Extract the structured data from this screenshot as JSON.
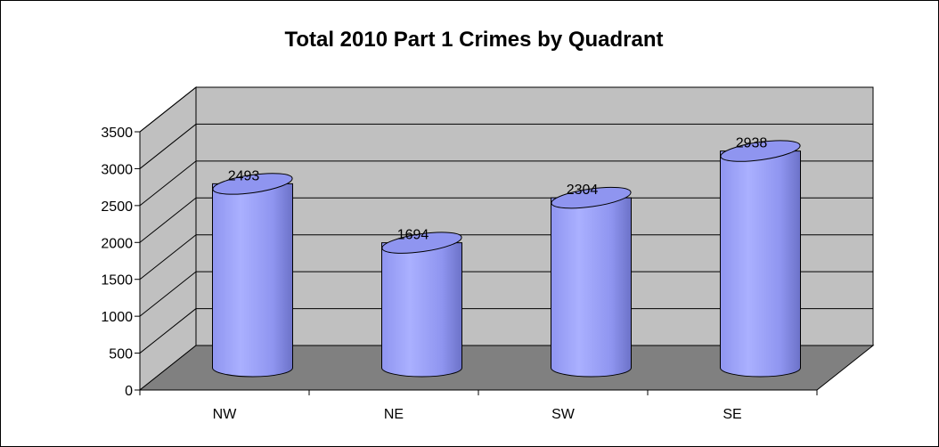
{
  "chart_data": {
    "type": "bar",
    "style": "3d-cylinder",
    "title": "Total 2010 Part 1 Crimes by Quadrant",
    "xlabel": "",
    "ylabel": "",
    "categories": [
      "NW",
      "NE",
      "SW",
      "SE"
    ],
    "values": [
      2493,
      1694,
      2304,
      2938
    ],
    "data_labels": [
      "2493",
      "1694",
      "2304",
      "2938"
    ],
    "ylim": [
      0,
      3500
    ],
    "yticks": [
      "0",
      "500",
      "1000",
      "1500",
      "2000",
      "2500",
      "3000",
      "3500"
    ],
    "grid": true,
    "legend": "none"
  },
  "colors": {
    "bar_light": "#aab0ff",
    "bar_mid": "#8f95f0",
    "bar_dark": "#6c72c8",
    "wall": "#c0c0c0",
    "floor": "#808080"
  }
}
